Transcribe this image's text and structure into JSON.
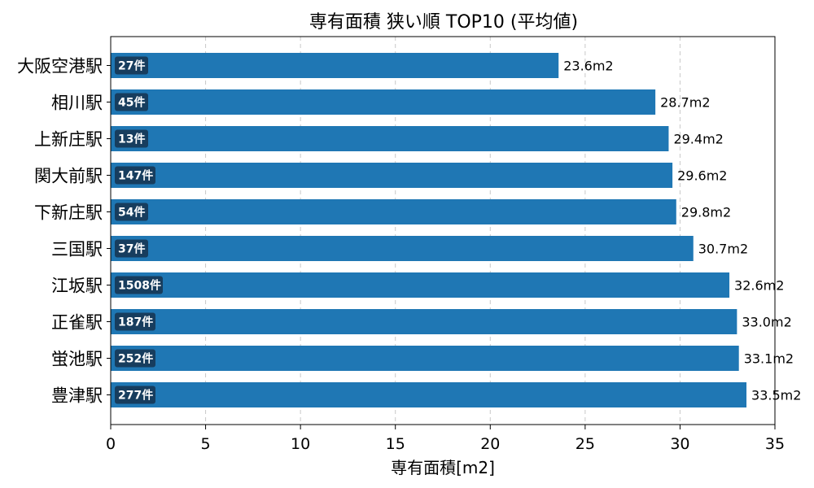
{
  "chart_data": {
    "type": "bar",
    "orientation": "horizontal",
    "title": "専有面積 狭い順 TOP10 (平均値)",
    "xlabel": "専有面積[m2]",
    "ylabel": "",
    "xlim": [
      0,
      35
    ],
    "xticks": [
      "0",
      "5",
      "10",
      "15",
      "20",
      "25",
      "30",
      "35"
    ],
    "grid": "x-dashed",
    "categories": [
      "大阪空港駅",
      "相川駅",
      "上新庄駅",
      "関大前駅",
      "下新庄駅",
      "三国駅",
      "江坂駅",
      "正雀駅",
      "蛍池駅",
      "豊津駅"
    ],
    "values": [
      23.6,
      28.7,
      29.4,
      29.6,
      29.8,
      30.7,
      32.6,
      33.0,
      33.1,
      33.5
    ],
    "value_labels": [
      "23.6m2",
      "28.7m2",
      "29.4m2",
      "29.6m2",
      "29.8m2",
      "30.7m2",
      "32.6m2",
      "33.0m2",
      "33.1m2",
      "33.5m2"
    ],
    "count_labels": [
      "27件",
      "45件",
      "13件",
      "147件",
      "54件",
      "37件",
      "1508件",
      "187件",
      "252件",
      "277件"
    ],
    "colors": {
      "bar": "#1f77b4",
      "count_badge": "#173d5e",
      "grid": "#c8c8c8"
    }
  }
}
